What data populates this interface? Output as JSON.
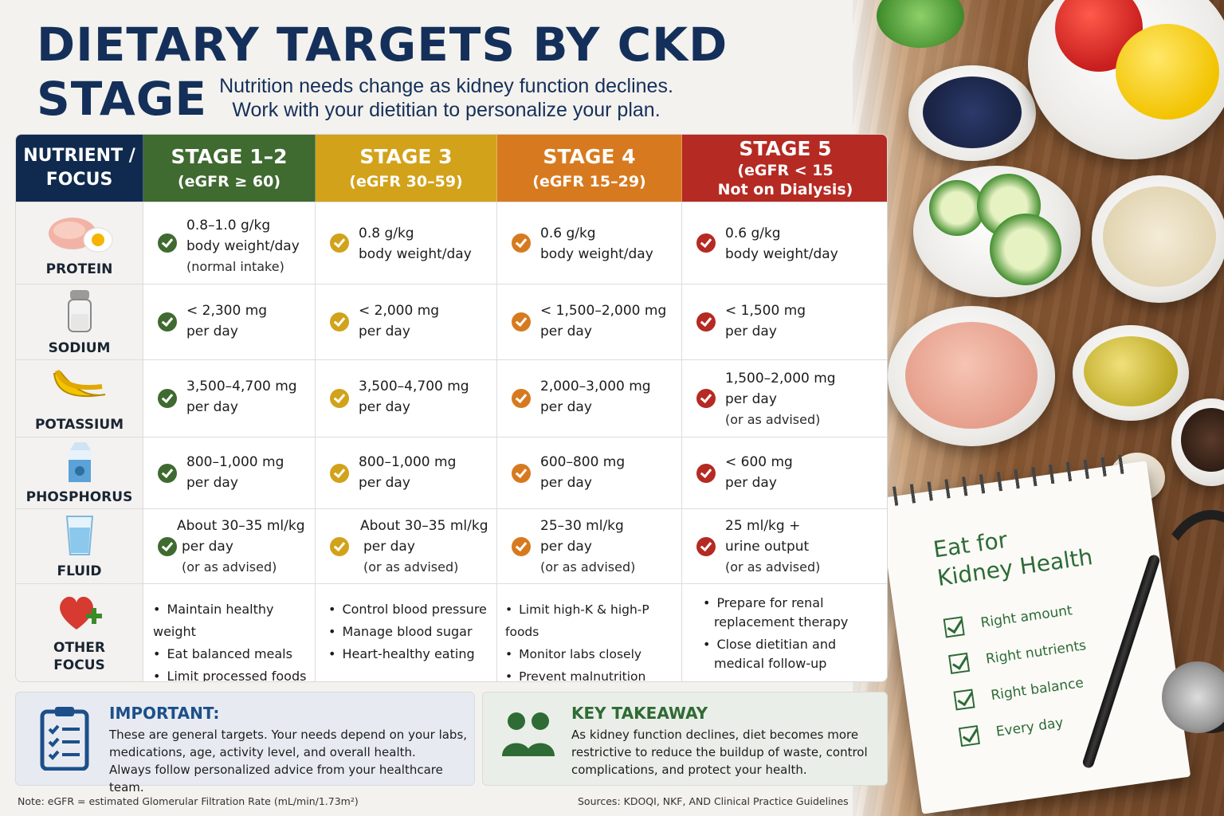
{
  "title": "DIETARY TARGETS BY CKD STAGE",
  "subtitle_line1": "Nutrition needs change as kidney function declines.",
  "subtitle_line2": "Work with your dietitian to personalize your plan.",
  "colors": {
    "navy": "#0f2a4e",
    "stage12": "#3f6a30",
    "stage3": "#d2a21a",
    "stage4": "#d77a1f",
    "stage5": "#b52a22"
  },
  "header": {
    "nutrient_col": "NUTRIENT /\nFOCUS",
    "stages": [
      {
        "name": "STAGE 1–2",
        "egfr": "(eGFR ≥ 60)"
      },
      {
        "name": "STAGE 3",
        "egfr": "(eGFR 30–59)"
      },
      {
        "name": "STAGE 4",
        "egfr": "(eGFR 15–29)"
      },
      {
        "name": "STAGE 5",
        "egfr": "(eGFR < 15",
        "egfr2": "Not on Dialysis)"
      }
    ]
  },
  "rows": [
    {
      "label": "PROTEIN",
      "icon": "chicken-egg-icon",
      "cells": [
        [
          "0.8–1.0 g/kg",
          "body weight/day",
          "(normal intake)"
        ],
        [
          "0.8 g/kg",
          "body weight/day"
        ],
        [
          "0.6 g/kg",
          "body weight/day"
        ],
        [
          "0.6 g/kg",
          "body weight/day"
        ]
      ]
    },
    {
      "label": "SODIUM",
      "icon": "salt-shaker-icon",
      "cells": [
        [
          "< 2,300 mg",
          "per day"
        ],
        [
          "< 2,000 mg",
          "per day"
        ],
        [
          "< 1,500–2,000 mg",
          "per day"
        ],
        [
          "< 1,500 mg",
          "per day"
        ]
      ]
    },
    {
      "label": "POTASSIUM",
      "icon": "banana-icon",
      "cells": [
        [
          "3,500–4,700 mg",
          "per day"
        ],
        [
          "3,500–4,700 mg",
          "per day"
        ],
        [
          "2,000–3,000 mg",
          "per day"
        ],
        [
          "1,500–2,000 mg",
          "per day",
          "(or as advised)"
        ]
      ]
    },
    {
      "label": "PHOSPHORUS",
      "icon": "milk-carton-icon",
      "cells": [
        [
          "800–1,000 mg",
          "per day"
        ],
        [
          "800–1,000 mg",
          "per day"
        ],
        [
          "600–800 mg",
          "per day"
        ],
        [
          "< 600 mg",
          "per day"
        ]
      ]
    },
    {
      "label": "FLUID",
      "icon": "water-glass-icon",
      "cells": [
        [
          "About 30–35 ml/kg",
          "per day",
          "(or as advised)"
        ],
        [
          "About 30–35 ml/kg",
          "per day",
          "(or as advised)"
        ],
        [
          "25–30 ml/kg",
          "per day",
          "(or as advised)"
        ],
        [
          "25 ml/kg +",
          "urine output",
          "(or as advised)"
        ]
      ]
    }
  ],
  "other_focus": {
    "label1": "OTHER",
    "label2": "FOCUS",
    "icon": "heart-plus-icon",
    "cells": [
      [
        "Maintain healthy weight",
        "Eat balanced meals",
        "Limit processed foods"
      ],
      [
        "Control blood pressure",
        "Manage blood sugar",
        "Heart-healthy eating"
      ],
      [
        "Limit high-K & high-P foods",
        "Monitor labs closely",
        "Prevent malnutrition"
      ],
      [
        "Prepare for renal replacement therapy",
        "Close dietitian and medical follow-up"
      ]
    ]
  },
  "important": {
    "heading": "IMPORTANT:",
    "line1": "These are general targets. Your needs depend on your labs,",
    "line2": "medications, age, activity level, and overall health.",
    "line3": "Always follow personalized advice from your healthcare team."
  },
  "takeaway": {
    "heading": "KEY TAKEAWAY",
    "line1": "As kidney function declines, diet becomes more",
    "line2": "restrictive to reduce the buildup of waste, control",
    "line3": "complications, and protect your health."
  },
  "note": "Note: eGFR = estimated Glomerular Filtration Rate (mL/min/1.73m²)",
  "sources": "Sources: KDOQI, NKF, AND Clinical Practice Guidelines",
  "notepad": {
    "title1": "Eat for",
    "title2": "Kidney Health",
    "items": [
      "Right amount",
      "Right nutrients",
      "Right balance",
      "Every day"
    ]
  }
}
